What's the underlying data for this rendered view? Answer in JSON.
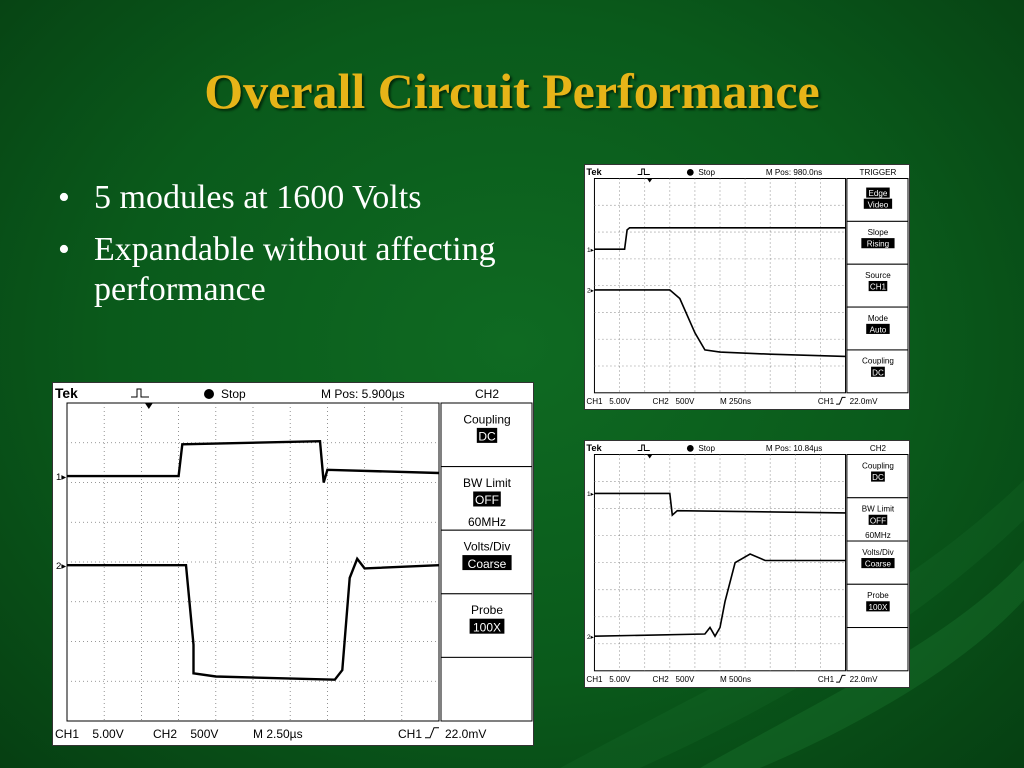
{
  "slide": {
    "title": "Overall Circuit Performance",
    "bullets": [
      "5 modules at 1600 Volts",
      "Expandable without affecting performance"
    ],
    "bullet_symbol": "•"
  },
  "scopes": [
    {
      "id": "scope-top-right",
      "brand": "Tek",
      "status": "Stop",
      "mpos": "M Pos: 980.0ns",
      "menu_title": "TRIGGER",
      "menu": [
        {
          "label": "",
          "value": "Edge\nVideo",
          "boxed": true,
          "stack": true
        },
        {
          "label": "Slope",
          "value": "Rising"
        },
        {
          "label": "Source",
          "value": "CH1"
        },
        {
          "label": "Mode",
          "value": "Auto"
        },
        {
          "label": "Coupling",
          "value": "DC"
        }
      ],
      "readout": {
        "ch1": "CH1   5.00V",
        "ch2": "CH2   500V",
        "m": "M 250ns",
        "trig": "CH1",
        "trig_val": "22.0mV"
      }
    },
    {
      "id": "scope-main",
      "brand": "Tek",
      "status": "Stop",
      "mpos": "M Pos: 5.900µs",
      "menu_title": "CH2",
      "menu": [
        {
          "label": "Coupling",
          "value": "DC"
        },
        {
          "label": "BW Limit",
          "value": "OFF",
          "extra": "60MHz"
        },
        {
          "label": "Volts/Div",
          "value": "Coarse"
        },
        {
          "label": "Probe",
          "value": "100X"
        },
        {
          "label": "",
          "value": ""
        }
      ],
      "readout": {
        "ch1": "CH1    5.00V",
        "ch2": "CH2    500V",
        "m": "M 2.50µs",
        "trig": "CH1",
        "trig_val": "22.0mV"
      }
    },
    {
      "id": "scope-bottom-right",
      "brand": "Tek",
      "status": "Stop",
      "mpos": "M Pos: 10.84µs",
      "menu_title": "CH2",
      "menu": [
        {
          "label": "Coupling",
          "value": "DC"
        },
        {
          "label": "BW Limit",
          "value": "OFF",
          "extra": "60MHz"
        },
        {
          "label": "Volts/Div",
          "value": "Coarse"
        },
        {
          "label": "Probe",
          "value": "100X"
        },
        {
          "label": "",
          "value": ""
        }
      ],
      "readout": {
        "ch1": "CH1   5.00V",
        "ch2": "CH2   500V",
        "m": "M 500ns",
        "trig": "CH1",
        "trig_val": "22.0mV"
      }
    }
  ],
  "colors": {
    "title": "#e6b418",
    "background": "#0a5a1b",
    "text": "#ffffff"
  }
}
